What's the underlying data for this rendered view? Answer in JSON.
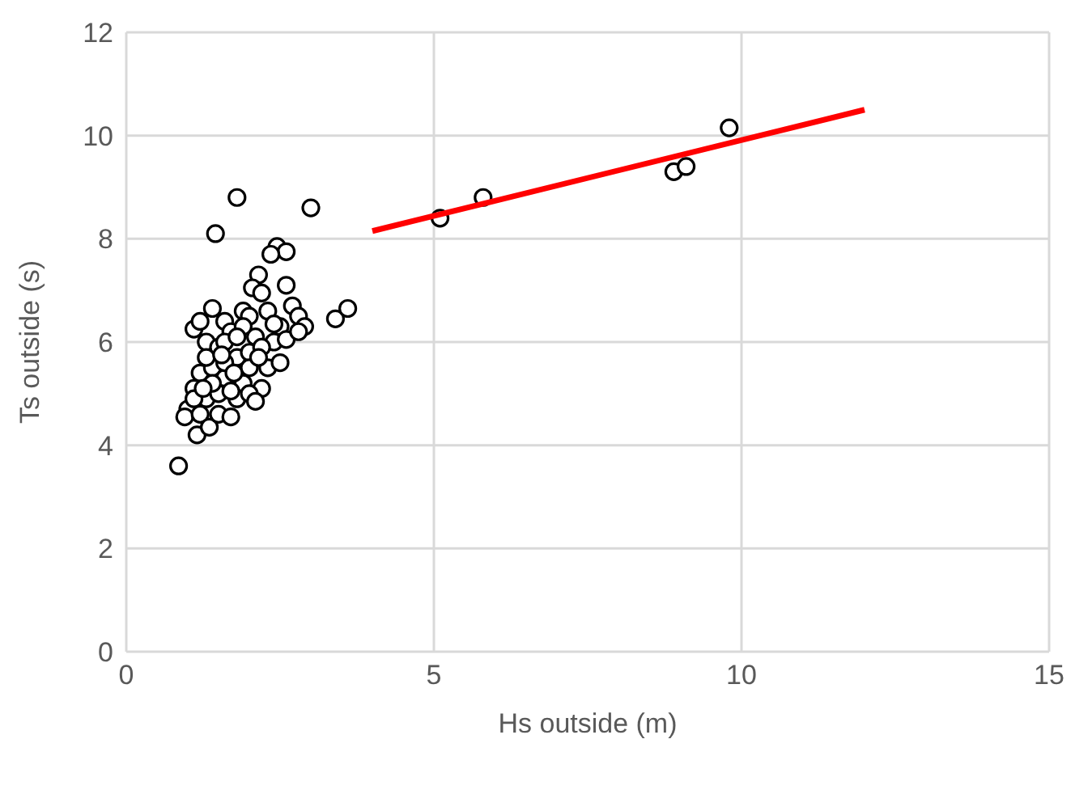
{
  "chart_data": {
    "type": "scatter",
    "xlabel": "Hs outside (m)",
    "ylabel": "Ts outside (s)",
    "xlim": [
      0,
      15
    ],
    "xticks": [
      0,
      5,
      10,
      15
    ],
    "ylim": [
      0,
      12
    ],
    "yticks": [
      0,
      2,
      4,
      6,
      8,
      10,
      12
    ],
    "grid": true,
    "series": [
      {
        "color": "#000000",
        "marker": "circle",
        "x": [
          0.85,
          1.8,
          1.45,
          3.0,
          2.45,
          2.6,
          2.35,
          2.15,
          2.05,
          2.2,
          2.6,
          2.7,
          2.8,
          2.9,
          3.4,
          3.6,
          1.4,
          1.1,
          1.2,
          1.6,
          1.9,
          2.0,
          2.3,
          2.5,
          1.3,
          1.5,
          1.7,
          2.1,
          2.4,
          1.8,
          2.0,
          2.3,
          1.2,
          1.4,
          1.6,
          1.9,
          2.2,
          2.5,
          1.0,
          0.95,
          1.1,
          1.3,
          1.2,
          1.15,
          1.35,
          1.5,
          1.7,
          1.8,
          2.0,
          2.1,
          1.5,
          1.7,
          1.4,
          2.2,
          1.6,
          1.9,
          2.6,
          2.4,
          1.3,
          2.0,
          1.8,
          2.8,
          1.6,
          1.1,
          1.25,
          1.55,
          1.75,
          2.15,
          5.1,
          5.8,
          8.9,
          9.1,
          9.8
        ],
        "values": [
          3.6,
          8.8,
          8.1,
          8.6,
          7.85,
          7.75,
          7.7,
          7.3,
          7.05,
          6.95,
          7.1,
          6.7,
          6.5,
          6.3,
          6.45,
          6.65,
          6.65,
          6.25,
          6.4,
          6.4,
          6.6,
          6.5,
          6.6,
          6.3,
          6.0,
          5.9,
          6.2,
          6.1,
          6.0,
          5.7,
          5.8,
          5.5,
          5.4,
          5.5,
          5.3,
          5.2,
          5.1,
          5.6,
          4.7,
          4.55,
          5.1,
          4.9,
          4.6,
          4.2,
          4.35,
          4.6,
          4.55,
          4.9,
          5.0,
          4.85,
          5.0,
          5.05,
          5.2,
          5.9,
          6.0,
          6.3,
          6.05,
          6.35,
          5.7,
          5.5,
          6.1,
          6.2,
          5.6,
          4.9,
          5.1,
          5.75,
          5.4,
          5.7,
          8.4,
          8.8,
          9.3,
          9.4,
          10.15
        ]
      },
      {
        "type": "line",
        "marker": "none",
        "color": "#ff0000",
        "x": [
          4,
          12
        ],
        "values": [
          8.15,
          10.5
        ]
      }
    ]
  }
}
